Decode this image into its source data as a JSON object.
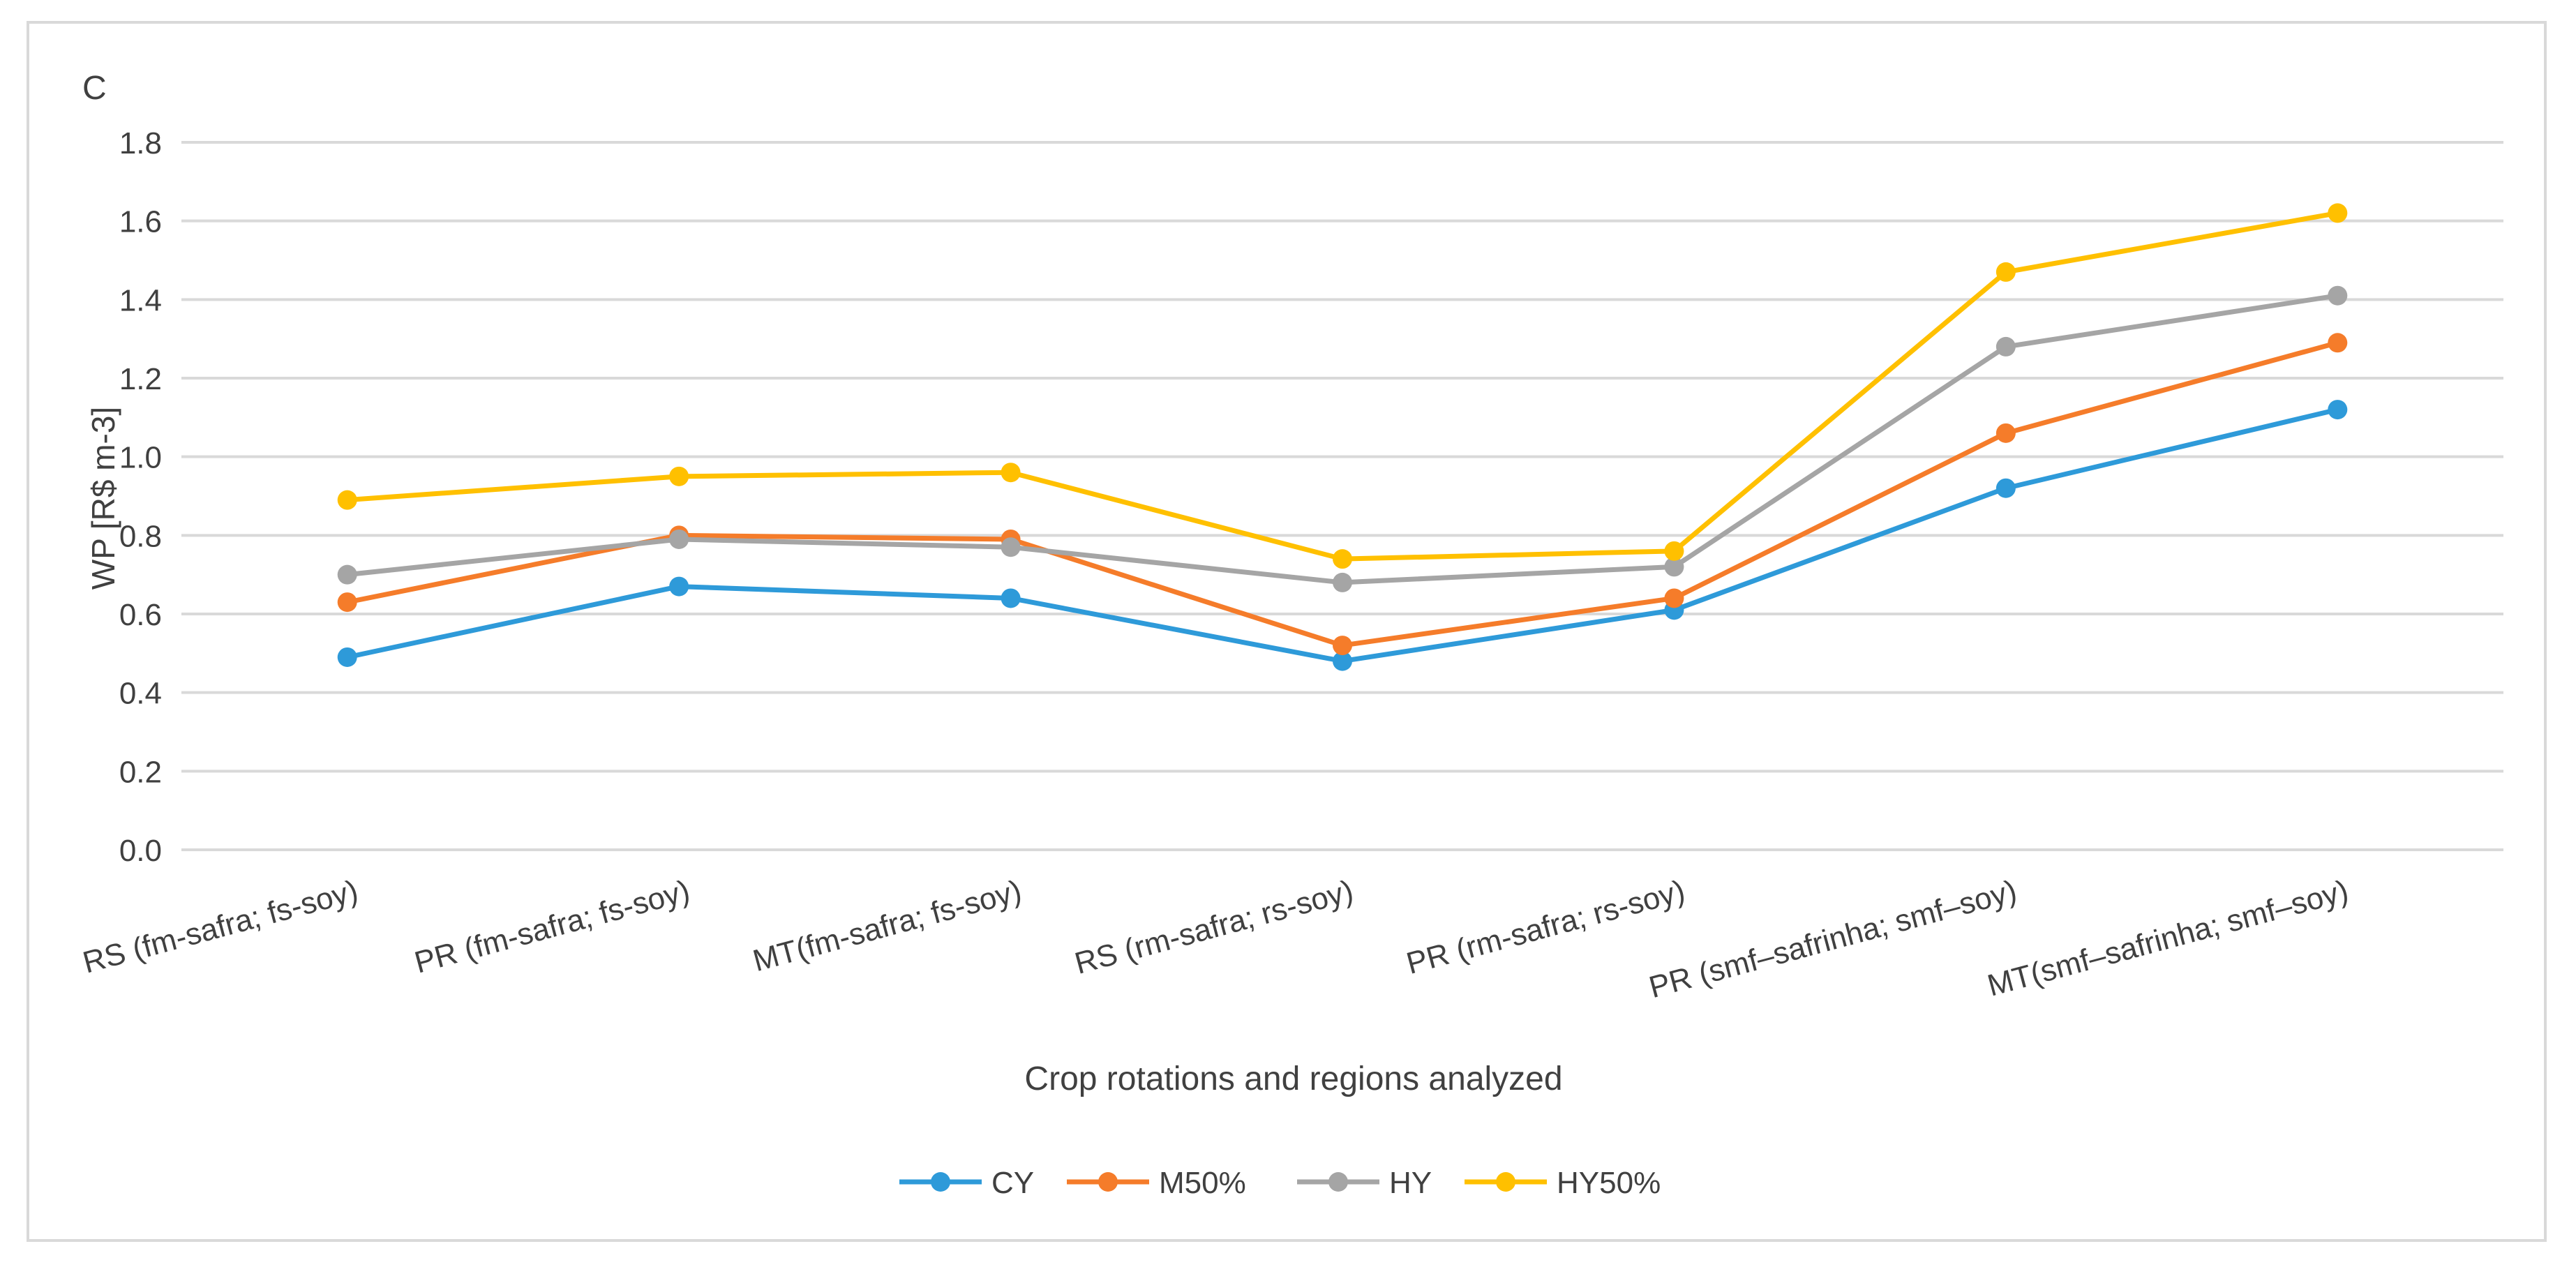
{
  "chart_data": {
    "type": "line",
    "panel_label": "C",
    "title": "",
    "xlabel": "Crop rotations and regions analyzed",
    "ylabel": "WP [R$ m-3]",
    "ylim": [
      0.0,
      1.8
    ],
    "yticks": [
      "0.0",
      "0.2",
      "0.4",
      "0.6",
      "0.8",
      "1.0",
      "1.2",
      "1.4",
      "1.6",
      "1.8"
    ],
    "ytick_values": [
      0.0,
      0.2,
      0.4,
      0.6,
      0.8,
      1.0,
      1.2,
      1.4,
      1.6,
      1.8
    ],
    "grid": true,
    "legend_position": "bottom-center",
    "categories": [
      "RS (fm-safra; fs-soy)",
      "PR (fm-safra; fs-soy)",
      "MT(fm-safra; fs-soy)",
      "RS (rm-safra; rs-soy)",
      "PR (rm-safra; rs-soy)",
      "PR (smf–safrinha; smf–soy)",
      "MT(smf–safrinha; smf–soy)"
    ],
    "series": [
      {
        "name": "CY",
        "color": "#2E9AD9",
        "values": [
          0.49,
          0.67,
          0.64,
          0.48,
          0.61,
          0.92,
          1.12
        ]
      },
      {
        "name": "M50%",
        "color": "#F57C2A",
        "values": [
          0.63,
          0.8,
          0.79,
          0.52,
          0.64,
          1.06,
          1.29
        ]
      },
      {
        "name": "HY",
        "color": "#A5A5A5",
        "values": [
          0.7,
          0.79,
          0.77,
          0.68,
          0.72,
          1.28,
          1.41
        ]
      },
      {
        "name": "HY50%",
        "color": "#FFC000",
        "values": [
          0.89,
          0.95,
          0.96,
          0.74,
          0.76,
          1.47,
          1.62
        ]
      }
    ]
  }
}
